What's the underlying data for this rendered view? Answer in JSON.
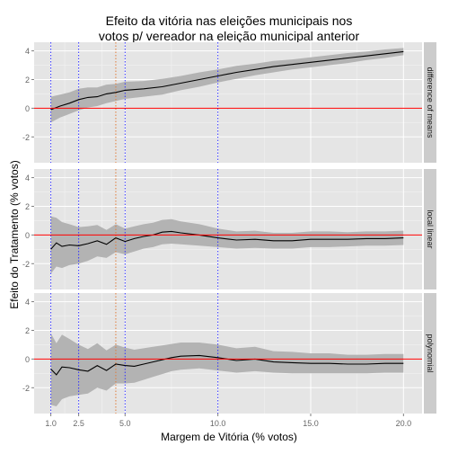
{
  "chart_data": {
    "type": "line",
    "title_line1": "Efeito da vitória nas eleições municipais nos",
    "title_line2": "votos p/ vereador na eleição municipal anterior",
    "xlabel": "Margem de Vitória (% votos)",
    "ylabel": "Efeito do Tratamento (% votos)",
    "xlim": [
      0.1,
      21.0
    ],
    "ylim": [
      -3.8,
      4.6
    ],
    "x_ticks": [
      1.0,
      2.5,
      5.0,
      10.0,
      15.0,
      20.0
    ],
    "x_tick_labels": [
      "1.0",
      "2.5",
      "5.0",
      "10.0",
      "15.0",
      "20.0"
    ],
    "y_ticks": [
      -2,
      0,
      2,
      4
    ],
    "y_tick_labels": [
      "-2",
      "0",
      "2",
      "4"
    ],
    "vlines_blue": [
      1.0,
      2.5,
      5.0,
      10.0
    ],
    "vline_orange": 4.5,
    "hline_red": 0,
    "colors": {
      "panel_bg": "#e5e5e5",
      "grid": "#ffffff",
      "strip_bg": "#cccccc",
      "ribbon": "#b3b3b3",
      "line": "#000000",
      "ref_red": "#ff0000",
      "ref_blue": "#3333ff",
      "ref_orange": "#e07b39",
      "axis_text": "#666666"
    },
    "panels": [
      {
        "strip": "difference of means",
        "x": [
          1.0,
          1.5,
          2.0,
          2.5,
          3.0,
          3.5,
          4.0,
          4.5,
          5.0,
          6.0,
          7.0,
          8.0,
          9.0,
          10.0,
          11.0,
          12.0,
          13.0,
          14.0,
          15.0,
          16.0,
          17.0,
          18.0,
          19.0,
          20.0
        ],
        "estimate": [
          -0.1,
          0.15,
          0.35,
          0.6,
          0.75,
          0.8,
          1.0,
          1.1,
          1.25,
          1.35,
          1.5,
          1.75,
          2.0,
          2.25,
          2.5,
          2.7,
          2.9,
          3.05,
          3.2,
          3.35,
          3.5,
          3.65,
          3.8,
          3.95
        ],
        "lower": [
          -1.0,
          -0.65,
          -0.4,
          -0.15,
          0.05,
          0.15,
          0.35,
          0.5,
          0.65,
          0.8,
          0.95,
          1.25,
          1.5,
          1.8,
          2.05,
          2.3,
          2.5,
          2.7,
          2.85,
          3.0,
          3.15,
          3.35,
          3.5,
          3.7
        ],
        "upper": [
          0.8,
          0.95,
          1.1,
          1.35,
          1.45,
          1.45,
          1.65,
          1.7,
          1.85,
          1.9,
          2.05,
          2.25,
          2.5,
          2.7,
          2.95,
          3.1,
          3.3,
          3.4,
          3.55,
          3.7,
          3.85,
          3.95,
          4.1,
          4.2
        ]
      },
      {
        "strip": "local linear",
        "x": [
          1.0,
          1.3,
          1.6,
          2.0,
          2.5,
          3.0,
          3.5,
          4.0,
          4.5,
          5.0,
          5.5,
          6.0,
          6.5,
          7.0,
          7.5,
          8.0,
          9.0,
          10.0,
          11.0,
          12.0,
          13.0,
          14.0,
          15.0,
          16.0,
          17.0,
          18.0,
          19.0,
          20.0
        ],
        "estimate": [
          -1.0,
          -0.55,
          -0.8,
          -0.7,
          -0.75,
          -0.6,
          -0.4,
          -0.65,
          -0.2,
          -0.45,
          -0.25,
          -0.1,
          0.0,
          0.2,
          0.25,
          0.15,
          0.0,
          -0.2,
          -0.35,
          -0.3,
          -0.4,
          -0.4,
          -0.3,
          -0.3,
          -0.3,
          -0.25,
          -0.25,
          -0.2
        ],
        "lower": [
          -2.7,
          -2.2,
          -2.3,
          -2.1,
          -2.0,
          -1.8,
          -1.5,
          -1.6,
          -1.2,
          -1.35,
          -1.15,
          -0.95,
          -0.85,
          -0.65,
          -0.6,
          -0.65,
          -0.75,
          -0.85,
          -0.95,
          -0.9,
          -0.95,
          -0.95,
          -0.85,
          -0.85,
          -0.8,
          -0.75,
          -0.75,
          -0.7
        ],
        "upper": [
          1.3,
          1.2,
          0.9,
          0.75,
          0.55,
          0.6,
          0.7,
          0.35,
          0.75,
          0.45,
          0.6,
          0.75,
          0.85,
          1.05,
          1.1,
          0.95,
          0.75,
          0.45,
          0.25,
          0.3,
          0.15,
          0.15,
          0.25,
          0.25,
          0.2,
          0.25,
          0.25,
          0.3
        ]
      },
      {
        "strip": "polynomial",
        "x": [
          1.0,
          1.3,
          1.6,
          2.0,
          2.5,
          3.0,
          3.5,
          4.0,
          4.5,
          5.0,
          5.5,
          6.0,
          6.5,
          7.0,
          7.5,
          8.0,
          9.0,
          10.0,
          11.0,
          12.0,
          13.0,
          14.0,
          15.0,
          16.0,
          17.0,
          18.0,
          19.0,
          20.0
        ],
        "estimate": [
          -0.7,
          -1.1,
          -0.55,
          -0.6,
          -0.75,
          -0.85,
          -0.45,
          -0.8,
          -0.35,
          -0.45,
          -0.5,
          -0.35,
          -0.2,
          -0.05,
          0.1,
          0.2,
          0.25,
          0.1,
          -0.1,
          0.0,
          -0.2,
          -0.25,
          -0.3,
          -0.3,
          -0.35,
          -0.35,
          -0.3,
          -0.3
        ],
        "lower": [
          -3.2,
          -3.3,
          -2.8,
          -2.6,
          -2.5,
          -2.4,
          -2.0,
          -2.2,
          -1.7,
          -1.7,
          -1.65,
          -1.45,
          -1.25,
          -1.05,
          -0.85,
          -0.75,
          -0.65,
          -0.8,
          -0.95,
          -0.85,
          -0.95,
          -1.0,
          -1.0,
          -1.0,
          -1.0,
          -1.0,
          -0.95,
          -0.95
        ],
        "upper": [
          1.8,
          1.1,
          1.7,
          1.4,
          1.0,
          0.7,
          1.1,
          0.6,
          1.0,
          0.8,
          0.65,
          0.75,
          0.85,
          0.95,
          1.05,
          1.15,
          1.15,
          1.0,
          0.75,
          0.85,
          0.55,
          0.5,
          0.4,
          0.4,
          0.3,
          0.3,
          0.35,
          0.35
        ]
      }
    ]
  }
}
